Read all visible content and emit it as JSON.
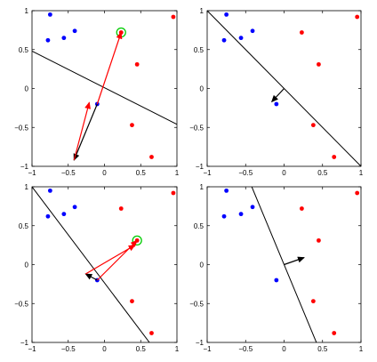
{
  "chart_data": [
    {
      "type": "scatter",
      "title": "",
      "xlabel": "",
      "ylabel": "",
      "xlim": [
        -1,
        1
      ],
      "ylim": [
        -1,
        1
      ],
      "xticks": [
        -1,
        -0.5,
        0,
        0.5,
        1
      ],
      "yticks": [
        -1,
        -0.5,
        0,
        0.5,
        1
      ],
      "xtick_labels": [
        "−1",
        "−0.5",
        "0",
        "0.5",
        "1"
      ],
      "ytick_labels": [
        "−1",
        "−0.5",
        "0",
        "0.5",
        "1"
      ],
      "grid": false,
      "series": [
        {
          "color": "#0000ff",
          "points": [
            [
              -0.75,
              0.95
            ],
            [
              -0.78,
              0.62
            ],
            [
              -0.56,
              0.65
            ],
            [
              -0.41,
              0.74
            ],
            [
              -0.1,
              -0.2
            ]
          ]
        },
        {
          "color": "#ff0000",
          "points": [
            [
              0.23,
              0.72
            ],
            [
              0.45,
              0.31
            ],
            [
              0.38,
              -0.47
            ],
            [
              0.65,
              -0.88
            ],
            [
              0.95,
              0.92
            ]
          ]
        }
      ],
      "boundary": [
        [
          -1,
          0.48
        ],
        [
          1,
          -0.46
        ]
      ],
      "highlight": {
        "point": [
          0.23,
          0.72
        ],
        "color": "#00cc00"
      },
      "arrows": [
        {
          "color": "#000000",
          "from": [
            -0.1,
            -0.2
          ],
          "to": [
            -0.42,
            -0.92
          ]
        },
        {
          "color": "#ff0000",
          "from": [
            -0.1,
            -0.2
          ],
          "to": [
            0.23,
            0.72
          ]
        },
        {
          "color": "#ff0000",
          "from": [
            -0.42,
            -0.92
          ],
          "to": [
            -0.21,
            -0.18
          ]
        }
      ]
    },
    {
      "type": "scatter",
      "title": "",
      "xlabel": "",
      "ylabel": "",
      "xlim": [
        -1,
        1
      ],
      "ylim": [
        -1,
        1
      ],
      "xticks": [
        -1,
        -0.5,
        0,
        0.5,
        1
      ],
      "yticks": [
        -1,
        -0.5,
        0,
        0.5,
        1
      ],
      "xtick_labels": [
        "−1",
        "−0.5",
        "0",
        "0.5",
        "1"
      ],
      "ytick_labels": [
        "−1",
        "−0.5",
        "0",
        "0.5",
        "1"
      ],
      "grid": false,
      "series": [
        {
          "color": "#0000ff",
          "points": [
            [
              -0.75,
              0.95
            ],
            [
              -0.78,
              0.62
            ],
            [
              -0.56,
              0.65
            ],
            [
              -0.41,
              0.74
            ],
            [
              -0.1,
              -0.2
            ]
          ]
        },
        {
          "color": "#ff0000",
          "points": [
            [
              0.23,
              0.72
            ],
            [
              0.45,
              0.31
            ],
            [
              0.38,
              -0.47
            ],
            [
              0.65,
              -0.88
            ],
            [
              0.95,
              0.92
            ]
          ]
        }
      ],
      "boundary": [
        [
          -1,
          1
        ],
        [
          1,
          -1
        ]
      ],
      "arrows": [
        {
          "color": "#000000",
          "from": [
            0,
            0
          ],
          "to": [
            -0.16,
            -0.17
          ]
        }
      ]
    },
    {
      "type": "scatter",
      "title": "",
      "xlabel": "",
      "ylabel": "",
      "xlim": [
        -1,
        1
      ],
      "ylim": [
        -1,
        1
      ],
      "xticks": [
        -1,
        -0.5,
        0,
        0.5,
        1
      ],
      "yticks": [
        -1,
        -0.5,
        0,
        0.5,
        1
      ],
      "xtick_labels": [
        "−1",
        "−0.5",
        "0",
        "0.5",
        "1"
      ],
      "ytick_labels": [
        "−1",
        "−0.5",
        "0",
        "0.5",
        "1"
      ],
      "grid": false,
      "series": [
        {
          "color": "#0000ff",
          "points": [
            [
              -0.75,
              0.95
            ],
            [
              -0.78,
              0.62
            ],
            [
              -0.56,
              0.65
            ],
            [
              -0.41,
              0.74
            ],
            [
              -0.1,
              -0.2
            ]
          ]
        },
        {
          "color": "#ff0000",
          "points": [
            [
              0.23,
              0.72
            ],
            [
              0.45,
              0.31
            ],
            [
              0.38,
              -0.47
            ],
            [
              0.65,
              -0.88
            ],
            [
              0.95,
              0.92
            ]
          ]
        }
      ],
      "boundary": [
        [
          -1,
          1
        ],
        [
          0.62,
          -1
        ]
      ],
      "highlight": {
        "point": [
          0.45,
          0.31
        ],
        "color": "#00cc00"
      },
      "arrows": [
        {
          "color": "#000000",
          "from": [
            -0.1,
            -0.2
          ],
          "to": [
            -0.26,
            -0.12
          ]
        },
        {
          "color": "#ff0000",
          "from": [
            -0.1,
            -0.2
          ],
          "to": [
            0.45,
            0.31
          ]
        },
        {
          "color": "#ff0000",
          "from": [
            -0.26,
            -0.12
          ],
          "to": [
            0.42,
            0.25
          ]
        }
      ]
    },
    {
      "type": "scatter",
      "title": "",
      "xlabel": "",
      "ylabel": "",
      "xlim": [
        -1,
        1
      ],
      "ylim": [
        -1,
        1
      ],
      "xticks": [
        -1,
        -0.5,
        0,
        0.5,
        1
      ],
      "yticks": [
        -1,
        -0.5,
        0,
        0.5,
        1
      ],
      "xtick_labels": [
        "−1",
        "−0.5",
        "0",
        "0.5",
        "1"
      ],
      "ytick_labels": [
        "−1",
        "−0.5",
        "0",
        "0.5",
        "1"
      ],
      "grid": false,
      "series": [
        {
          "color": "#0000ff",
          "points": [
            [
              -0.75,
              0.95
            ],
            [
              -0.78,
              0.62
            ],
            [
              -0.56,
              0.65
            ],
            [
              -0.41,
              0.74
            ],
            [
              -0.1,
              -0.2
            ]
          ]
        },
        {
          "color": "#ff0000",
          "points": [
            [
              0.23,
              0.72
            ],
            [
              0.45,
              0.31
            ],
            [
              0.38,
              -0.47
            ],
            [
              0.65,
              -0.88
            ],
            [
              0.95,
              0.92
            ]
          ]
        }
      ],
      "boundary": [
        [
          -0.42,
          1
        ],
        [
          0.42,
          -1
        ]
      ],
      "arrows": [
        {
          "color": "#000000",
          "from": [
            0,
            0
          ],
          "to": [
            0.26,
            0.09
          ]
        }
      ]
    }
  ]
}
